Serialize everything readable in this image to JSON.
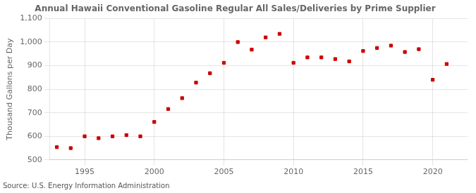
{
  "chart_data": {
    "type": "scatter",
    "title": "Annual Hawaii Conventional Gasoline Regular All Sales/Deliveries by Prime Supplier",
    "ylabel": "Thousand Gallons per Day",
    "annotation": "Source: U.S. Energy Information Administration",
    "x": [
      1993,
      1994,
      1995,
      1996,
      1997,
      1998,
      1999,
      2000,
      2001,
      2002,
      2003,
      2004,
      2005,
      2006,
      2007,
      2008,
      2009,
      2010,
      2011,
      2012,
      2013,
      2014,
      2015,
      2016,
      2017,
      2018,
      2019,
      2020,
      2021
    ],
    "values": [
      554,
      550,
      600,
      592,
      600,
      605,
      600,
      661,
      716,
      762,
      828,
      868,
      912,
      1000,
      968,
      1020,
      1035,
      912,
      935,
      935,
      928,
      918,
      962,
      975,
      985,
      958,
      970,
      840,
      907
    ],
    "color": "#cc0000",
    "marker": "square",
    "xlim": [
      1992.5,
      2022.5
    ],
    "xticks": [
      1995,
      2000,
      2005,
      2010,
      2015,
      2020
    ],
    "ylim": [
      500,
      1100
    ],
    "yticks": [
      500,
      600,
      700,
      800,
      900,
      {
        "value": 1000,
        "label": "1,000"
      },
      {
        "value": 1100,
        "label": "1,100"
      }
    ],
    "grid": true
  }
}
